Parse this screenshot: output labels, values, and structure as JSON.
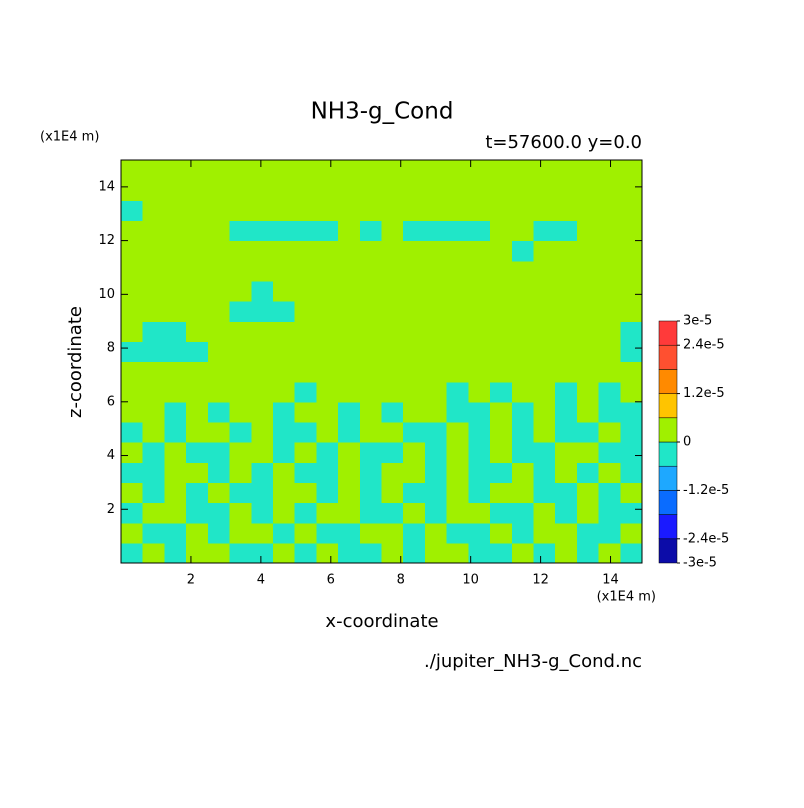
{
  "chart_data": {
    "type": "contour",
    "title": "NH3-g_Cond",
    "subtitle": "t=57600.0 y=0.0",
    "x_label": "x-coordinate",
    "y_label": "z-coordinate",
    "x_unit": "(x1E4 m)",
    "y_unit": "(x1E4 m)",
    "source": "./jupiter_NH3-g_Cond.nc",
    "xlim": [
      0,
      14.9
    ],
    "ylim": [
      0,
      15
    ],
    "xticks": [
      2,
      4,
      6,
      8,
      10,
      12,
      14
    ],
    "yticks": [
      2,
      4,
      6,
      8,
      10,
      12,
      14
    ],
    "levels": [
      -3e-05,
      -2.4e-05,
      -1.8e-05,
      -1.2e-05,
      -6e-06,
      0,
      6e-06,
      1.2e-05,
      1.8e-05,
      2.4e-05,
      3e-05
    ],
    "colors": [
      "#0c0ca8",
      "#1a1aff",
      "#0a6cff",
      "#1ea8ff",
      "#20e6c8",
      "#a0f000",
      "#ffc400",
      "#ff8a00",
      "#ff5030",
      "#ff3a3a"
    ],
    "colorbar_ticks": [
      {
        "value": 3e-05,
        "label": "3e-5"
      },
      {
        "value": 2.4e-05,
        "label": "2.4e-5"
      },
      {
        "value": 1.2e-05,
        "label": "1.2e-5"
      },
      0,
      {
        "value": -1.2e-05,
        "label": "-1.2e-5"
      },
      {
        "value": -2.4e-05,
        "label": "-2.4e-5"
      },
      {
        "value": -3e-05,
        "label": "-3e-5"
      }
    ],
    "z": [
      [
        -3e-06,
        3e-06,
        -3e-06,
        3e-06,
        3e-06,
        -3e-06,
        -3e-06,
        3e-06,
        -3e-06,
        3e-06,
        -3e-06,
        -3e-06,
        3e-06,
        -3e-06,
        3e-06,
        3e-06,
        -3e-06,
        -3e-06,
        3e-06,
        -3e-06,
        3e-06,
        -3e-06,
        3e-06,
        -3e-06
      ],
      [
        3e-06,
        -3e-06,
        -3e-06,
        3e-06,
        -3e-06,
        3e-06,
        3e-06,
        -3e-06,
        3e-06,
        -3e-06,
        -3e-06,
        3e-06,
        3e-06,
        -3e-06,
        3e-06,
        -3e-06,
        -3e-06,
        3e-06,
        -3e-06,
        3e-06,
        3e-06,
        -3e-06,
        -3e-06,
        3e-06
      ],
      [
        -3e-06,
        3e-06,
        3e-06,
        -3e-06,
        -3e-06,
        3e-06,
        -3e-06,
        3e-06,
        -3e-06,
        3e-06,
        3e-06,
        -3e-06,
        -3e-06,
        3e-06,
        -3e-06,
        3e-06,
        3e-06,
        -3e-06,
        -3e-06,
        3e-06,
        -3e-06,
        3e-06,
        -3e-06,
        -3e-06
      ],
      [
        3e-06,
        -3e-06,
        3e-06,
        -3e-06,
        3e-06,
        -3e-06,
        -3e-06,
        3e-06,
        3e-06,
        -3e-06,
        3e-06,
        -3e-06,
        3e-06,
        -3e-06,
        -3e-06,
        3e-06,
        -3e-06,
        3e-06,
        3e-06,
        -3e-06,
        -3e-06,
        3e-06,
        -3e-06,
        3e-06
      ],
      [
        -3e-06,
        -3e-06,
        3e-06,
        3e-06,
        -3e-06,
        3e-06,
        -3e-06,
        3e-06,
        -3e-06,
        -3e-06,
        3e-06,
        -3e-06,
        3e-06,
        3e-06,
        -3e-06,
        3e-06,
        -3e-06,
        -3e-06,
        3e-06,
        -3e-06,
        3e-06,
        -3e-06,
        3e-06,
        -3e-06
      ],
      [
        3e-06,
        -3e-06,
        3e-06,
        -3e-06,
        -3e-06,
        3e-06,
        3e-06,
        -3e-06,
        3e-06,
        -3e-06,
        3e-06,
        -3e-06,
        -3e-06,
        3e-06,
        -3e-06,
        3e-06,
        -3e-06,
        3e-06,
        -3e-06,
        -3e-06,
        3e-06,
        3e-06,
        -3e-06,
        -3e-06
      ],
      [
        -3e-06,
        3e-06,
        -3e-06,
        3e-06,
        3e-06,
        -3e-06,
        3e-06,
        -3e-06,
        -3e-06,
        3e-06,
        -3e-06,
        3e-06,
        3e-06,
        -3e-06,
        -3e-06,
        3e-06,
        -3e-06,
        3e-06,
        -3e-06,
        3e-06,
        -3e-06,
        -3e-06,
        3e-06,
        -3e-06
      ],
      [
        3e-06,
        3e-06,
        -3e-06,
        3e-06,
        -3e-06,
        3e-06,
        3e-06,
        -3e-06,
        3e-06,
        3e-06,
        -3e-06,
        3e-06,
        -3e-06,
        3e-06,
        3e-06,
        -3e-06,
        -3e-06,
        3e-06,
        -3e-06,
        3e-06,
        -3e-06,
        3e-06,
        -3e-06,
        -3e-06
      ],
      [
        3e-06,
        3e-06,
        3e-06,
        3e-06,
        3e-06,
        3e-06,
        3e-06,
        3e-06,
        -3e-06,
        3e-06,
        3e-06,
        3e-06,
        3e-06,
        3e-06,
        3e-06,
        -3e-06,
        3e-06,
        -3e-06,
        3e-06,
        3e-06,
        -3e-06,
        3e-06,
        -3e-06,
        3e-06
      ],
      [
        3e-06,
        3e-06,
        3e-06,
        3e-06,
        3e-06,
        3e-06,
        3e-06,
        3e-06,
        3e-06,
        3e-06,
        3e-06,
        3e-06,
        3e-06,
        3e-06,
        3e-06,
        3e-06,
        3e-06,
        3e-06,
        3e-06,
        3e-06,
        3e-06,
        3e-06,
        3e-06,
        3e-06
      ],
      [
        -3e-06,
        -3e-06,
        -3e-06,
        -3e-06,
        3e-06,
        3e-06,
        3e-06,
        3e-06,
        3e-06,
        3e-06,
        3e-06,
        3e-06,
        3e-06,
        3e-06,
        3e-06,
        3e-06,
        3e-06,
        3e-06,
        3e-06,
        3e-06,
        3e-06,
        3e-06,
        3e-06,
        -3e-06
      ],
      [
        3e-06,
        -3e-06,
        -3e-06,
        3e-06,
        3e-06,
        3e-06,
        3e-06,
        3e-06,
        3e-06,
        3e-06,
        3e-06,
        3e-06,
        3e-06,
        3e-06,
        3e-06,
        3e-06,
        3e-06,
        3e-06,
        3e-06,
        3e-06,
        3e-06,
        3e-06,
        3e-06,
        -3e-06
      ],
      [
        3e-06,
        3e-06,
        3e-06,
        3e-06,
        3e-06,
        -3e-06,
        -3e-06,
        -3e-06,
        3e-06,
        3e-06,
        3e-06,
        3e-06,
        3e-06,
        3e-06,
        3e-06,
        3e-06,
        3e-06,
        3e-06,
        3e-06,
        3e-06,
        3e-06,
        3e-06,
        3e-06,
        3e-06
      ],
      [
        3e-06,
        3e-06,
        3e-06,
        3e-06,
        3e-06,
        3e-06,
        -3e-06,
        3e-06,
        3e-06,
        3e-06,
        3e-06,
        3e-06,
        3e-06,
        3e-06,
        3e-06,
        3e-06,
        3e-06,
        3e-06,
        3e-06,
        3e-06,
        3e-06,
        3e-06,
        3e-06,
        3e-06
      ],
      [
        3e-06,
        3e-06,
        3e-06,
        3e-06,
        3e-06,
        3e-06,
        3e-06,
        3e-06,
        3e-06,
        3e-06,
        3e-06,
        3e-06,
        3e-06,
        3e-06,
        3e-06,
        3e-06,
        3e-06,
        3e-06,
        3e-06,
        3e-06,
        3e-06,
        3e-06,
        3e-06,
        3e-06
      ],
      [
        3e-06,
        3e-06,
        3e-06,
        3e-06,
        3e-06,
        3e-06,
        3e-06,
        3e-06,
        3e-06,
        3e-06,
        3e-06,
        3e-06,
        3e-06,
        3e-06,
        3e-06,
        3e-06,
        3e-06,
        3e-06,
        -3e-06,
        3e-06,
        3e-06,
        3e-06,
        3e-06,
        3e-06
      ],
      [
        3e-06,
        3e-06,
        3e-06,
        3e-06,
        3e-06,
        -3e-06,
        -3e-06,
        -3e-06,
        -3e-06,
        -3e-06,
        3e-06,
        -3e-06,
        3e-06,
        -3e-06,
        -3e-06,
        -3e-06,
        -3e-06,
        3e-06,
        3e-06,
        -3e-06,
        -3e-06,
        3e-06,
        3e-06,
        3e-06
      ],
      [
        -3e-06,
        3e-06,
        3e-06,
        3e-06,
        3e-06,
        3e-06,
        3e-06,
        3e-06,
        3e-06,
        3e-06,
        3e-06,
        3e-06,
        3e-06,
        3e-06,
        3e-06,
        3e-06,
        3e-06,
        3e-06,
        3e-06,
        3e-06,
        3e-06,
        3e-06,
        3e-06,
        3e-06
      ],
      [
        3e-06,
        3e-06,
        3e-06,
        3e-06,
        3e-06,
        3e-06,
        3e-06,
        3e-06,
        3e-06,
        3e-06,
        3e-06,
        3e-06,
        3e-06,
        3e-06,
        3e-06,
        3e-06,
        3e-06,
        3e-06,
        3e-06,
        3e-06,
        3e-06,
        3e-06,
        3e-06,
        3e-06
      ],
      [
        3e-06,
        3e-06,
        3e-06,
        3e-06,
        3e-06,
        3e-06,
        3e-06,
        3e-06,
        3e-06,
        3e-06,
        3e-06,
        3e-06,
        3e-06,
        3e-06,
        3e-06,
        3e-06,
        3e-06,
        3e-06,
        3e-06,
        3e-06,
        3e-06,
        3e-06,
        3e-06,
        3e-06
      ]
    ]
  }
}
